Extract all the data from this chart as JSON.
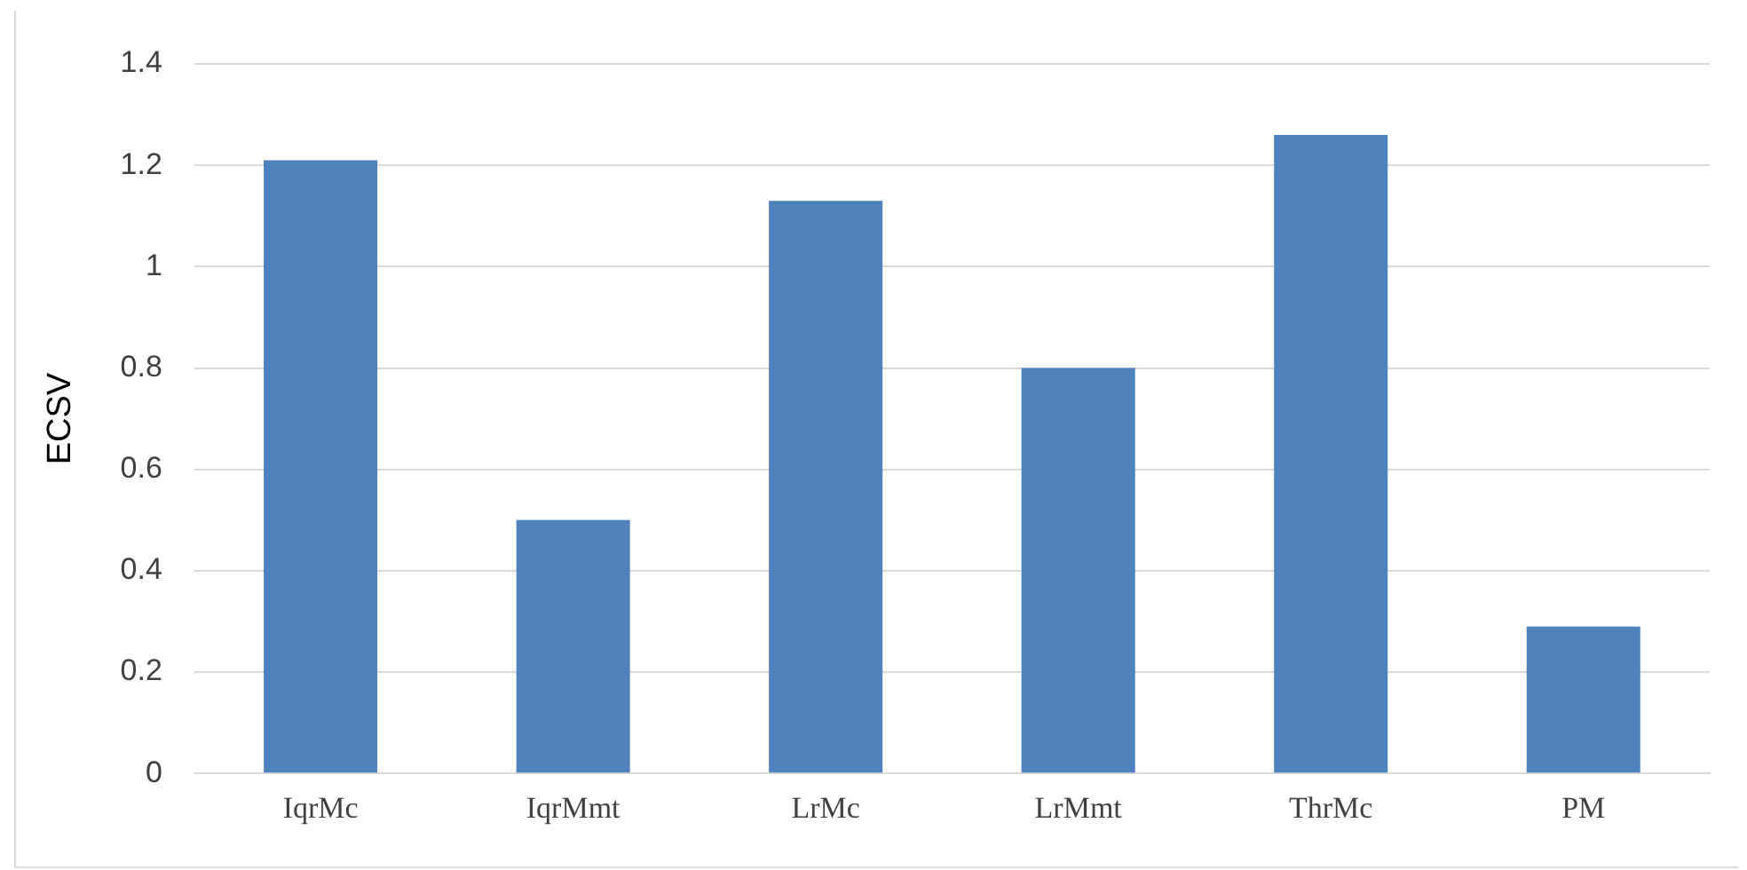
{
  "chart_data": {
    "type": "bar",
    "ylabel": "ECSV",
    "categories": [
      "IqrMc",
      "IqrMmt",
      "LrMc",
      "LrMmt",
      "ThrMc",
      "PM"
    ],
    "values": [
      1.21,
      0.5,
      1.13,
      0.8,
      1.26,
      0.29
    ],
    "color": "#4f81bd",
    "ylim": [
      0,
      1.4
    ],
    "yticks": [
      0,
      0.2,
      0.4,
      0.6,
      0.8,
      1,
      1.2,
      1.4
    ],
    "grid": "y",
    "legend": false
  }
}
